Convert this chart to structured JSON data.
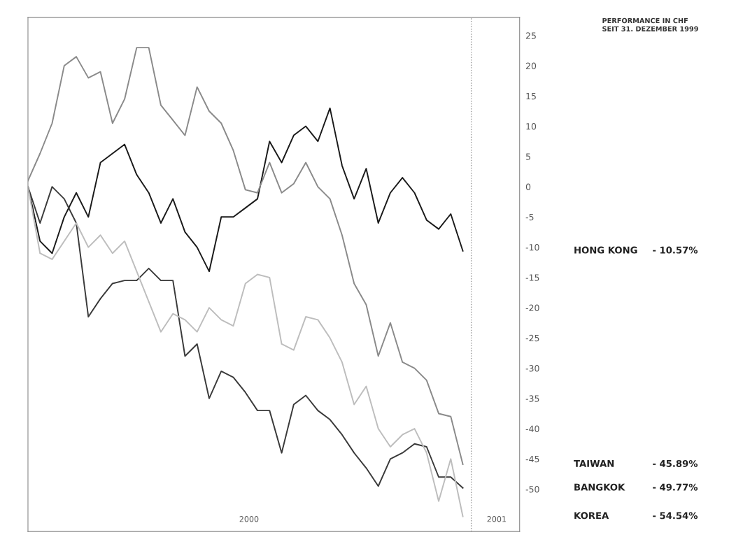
{
  "chart_data": {
    "type": "line",
    "title": "PERFORMANCE IN CHF",
    "subtitle": "SEIT 31. DEZEMBER 1999",
    "x": [
      "1999-12-31",
      "2000-01-10",
      "2000-01-20",
      "2000-01-30",
      "2000-02-09",
      "2000-02-19",
      "2000-02-29",
      "2000-03-10",
      "2000-03-20",
      "2000-03-30",
      "2000-04-09",
      "2000-04-19",
      "2000-04-29",
      "2000-05-09",
      "2000-05-19",
      "2000-05-29",
      "2000-06-08",
      "2000-06-18",
      "2000-06-28",
      "2000-07-08",
      "2000-07-18",
      "2000-07-28",
      "2000-08-07",
      "2000-08-17",
      "2000-08-27",
      "2000-09-06",
      "2000-09-16",
      "2000-09-26",
      "2000-10-06",
      "2000-10-16",
      "2000-10-26",
      "2000-11-05",
      "2000-11-15",
      "2000-11-25",
      "2000-12-05",
      "2000-12-15",
      "2000-12-25"
    ],
    "series": [
      {
        "name": "HONG KONG",
        "color": "#1a1a1a",
        "values": [
          0,
          -9,
          -11,
          -5,
          -1,
          -5,
          4,
          5.5,
          7,
          2,
          -1,
          -6,
          -2,
          -7.5,
          -10,
          -14,
          -5,
          -5,
          -3.5,
          -2,
          7.5,
          4,
          8.5,
          10,
          7.5,
          13,
          3.5,
          -2,
          3,
          -6,
          -1,
          1.5,
          -1,
          -5.5,
          -7,
          -4.5,
          -10.6
        ]
      },
      {
        "name": "TAIWAN",
        "color": "#8a8a8a",
        "values": [
          1,
          5.5,
          10.5,
          20,
          21.5,
          18,
          19,
          10.5,
          14.5,
          23,
          23,
          13.5,
          11,
          8.5,
          16.5,
          12.5,
          10.5,
          6,
          -0.5,
          -1,
          4,
          -1,
          0.5,
          4,
          0,
          -2,
          -8,
          -16,
          -19.5,
          -28,
          -22.5,
          -29,
          -30,
          -32,
          -37.5,
          -38,
          -45.9
        ]
      },
      {
        "name": "BANGKOK",
        "color": "#3a3a3a",
        "values": [
          0,
          -6,
          0,
          -2,
          -6,
          -21.5,
          -18.5,
          -16,
          -15.5,
          -15.5,
          -13.5,
          -15.5,
          -15.5,
          -28,
          -26,
          -35,
          -30.5,
          -31.5,
          -34,
          -37,
          -37,
          -44,
          -36,
          -34.5,
          -37,
          -38.5,
          -41,
          -44,
          -46.5,
          -49.5,
          -45,
          -44,
          -42.5,
          -43,
          -48,
          -48,
          -49.8
        ]
      },
      {
        "name": "KOREA",
        "color": "#bdbdbd",
        "values": [
          0,
          -11,
          -12,
          -9,
          -6,
          -10,
          -8,
          -11,
          -9,
          -14,
          -19,
          -24,
          -21,
          -22,
          -24,
          -20,
          -22,
          -23,
          -16,
          -14.5,
          -15,
          -26,
          -27,
          -21.5,
          -22,
          -25,
          -29,
          -36,
          -33,
          -40,
          -43,
          -41,
          -40,
          -44,
          -52,
          -45,
          -54.5
        ]
      }
    ],
    "annotations": [
      "- 10.57%",
      "- 45.89%",
      "- 49.77%",
      "- 54.54%"
    ],
    "xlim": [
      "1999-12-31",
      "2001-02-10"
    ],
    "xticks": [
      {
        "value": "2000-07-01",
        "label": "2000"
      },
      {
        "value": "2001-01-22",
        "label": "2001"
      }
    ],
    "ylim": [
      -57,
      28
    ],
    "yticks": [
      25,
      20,
      15,
      10,
      5,
      0,
      -5,
      -10,
      -15,
      -20,
      -25,
      -30,
      -35,
      -40,
      -45,
      -50
    ],
    "ref_lines": [
      {
        "axis": "x",
        "value": "2001-01-01",
        "color": "#9a9a9a",
        "line_style": "dotted"
      }
    ],
    "grid": false,
    "legend": false,
    "marker": "none",
    "line_style": "solid"
  }
}
